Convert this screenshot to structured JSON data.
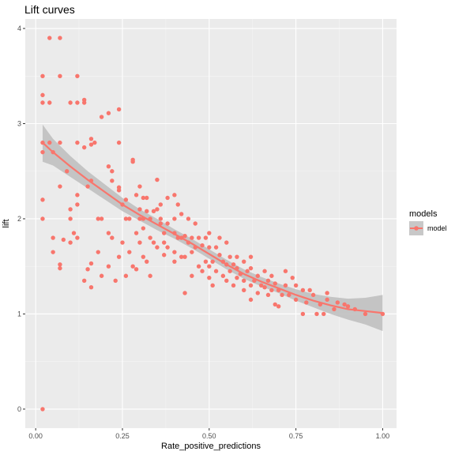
{
  "chart_data": {
    "type": "scatter",
    "title": "Lift curves",
    "xlabel": "Rate_positive_predictions",
    "ylabel": "lift",
    "xlim": [
      -0.03,
      1.04
    ],
    "ylim": [
      -0.2,
      4.1
    ],
    "x_ticks": [
      0.0,
      0.25,
      0.5,
      0.75,
      1.0
    ],
    "x_tick_labels": [
      "0.00",
      "0.25",
      "0.50",
      "0.75",
      "1.00"
    ],
    "y_ticks": [
      0,
      1,
      2,
      3,
      4
    ],
    "y_tick_labels": [
      "0",
      "1",
      "2",
      "3",
      "4"
    ],
    "grid": true,
    "legend": {
      "title": "models",
      "placement": "right",
      "entries": [
        "model"
      ]
    },
    "colors": {
      "points": "#f8766d",
      "smooth": "#f8766d",
      "ribbon": "#bdbdbd",
      "panel": "#ebebeb",
      "grid": "#ffffff"
    },
    "series": [
      {
        "name": "model",
        "points": [
          [
            0.02,
            0.0
          ],
          [
            0.02,
            2.0
          ],
          [
            0.02,
            2.2
          ],
          [
            0.02,
            2.7
          ],
          [
            0.02,
            2.8
          ],
          [
            0.02,
            3.22
          ],
          [
            0.02,
            3.3
          ],
          [
            0.02,
            3.5
          ],
          [
            0.04,
            2.8
          ],
          [
            0.04,
            3.22
          ],
          [
            0.04,
            3.9
          ],
          [
            0.05,
            1.65
          ],
          [
            0.05,
            1.8
          ],
          [
            0.05,
            2.7
          ],
          [
            0.07,
            1.48
          ],
          [
            0.07,
            1.52
          ],
          [
            0.07,
            2.34
          ],
          [
            0.07,
            2.8
          ],
          [
            0.07,
            3.5
          ],
          [
            0.07,
            3.9
          ],
          [
            0.08,
            1.78
          ],
          [
            0.09,
            2.5
          ],
          [
            0.1,
            1.75
          ],
          [
            0.1,
            2.0
          ],
          [
            0.1,
            2.1
          ],
          [
            0.1,
            3.22
          ],
          [
            0.11,
            1.85
          ],
          [
            0.12,
            1.8
          ],
          [
            0.12,
            2.15
          ],
          [
            0.12,
            2.25
          ],
          [
            0.12,
            2.8
          ],
          [
            0.12,
            3.22
          ],
          [
            0.12,
            3.5
          ],
          [
            0.14,
            1.35
          ],
          [
            0.14,
            2.75
          ],
          [
            0.14,
            3.22
          ],
          [
            0.14,
            3.25
          ],
          [
            0.15,
            1.47
          ],
          [
            0.15,
            2.34
          ],
          [
            0.16,
            1.28
          ],
          [
            0.16,
            1.53
          ],
          [
            0.16,
            2.4
          ],
          [
            0.16,
            2.78
          ],
          [
            0.16,
            2.84
          ],
          [
            0.17,
            2.8
          ],
          [
            0.18,
            1.65
          ],
          [
            0.18,
            2.0
          ],
          [
            0.19,
            1.4
          ],
          [
            0.19,
            2.0
          ],
          [
            0.19,
            3.07
          ],
          [
            0.21,
            1.5
          ],
          [
            0.21,
            1.85
          ],
          [
            0.21,
            2.55
          ],
          [
            0.21,
            3.11
          ],
          [
            0.22,
            1.8
          ],
          [
            0.22,
            2.4
          ],
          [
            0.22,
            2.5
          ],
          [
            0.23,
            1.35
          ],
          [
            0.24,
            1.6
          ],
          [
            0.24,
            2.3
          ],
          [
            0.24,
            2.33
          ],
          [
            0.24,
            2.8
          ],
          [
            0.24,
            3.15
          ],
          [
            0.25,
            1.75
          ],
          [
            0.25,
            2.15
          ],
          [
            0.26,
            1.4
          ],
          [
            0.26,
            2.0
          ],
          [
            0.26,
            2.2
          ],
          [
            0.27,
            1.65
          ],
          [
            0.27,
            2.0
          ],
          [
            0.28,
            1.5
          ],
          [
            0.28,
            2.6
          ],
          [
            0.28,
            2.62
          ],
          [
            0.29,
            1.47
          ],
          [
            0.29,
            1.85
          ],
          [
            0.29,
            2.25
          ],
          [
            0.3,
            1.75
          ],
          [
            0.3,
            2.0
          ],
          [
            0.3,
            2.1
          ],
          [
            0.3,
            2.34
          ],
          [
            0.31,
            1.6
          ],
          [
            0.31,
            1.9
          ],
          [
            0.31,
            2.0
          ],
          [
            0.31,
            2.22
          ],
          [
            0.32,
            1.55
          ],
          [
            0.32,
            2.22
          ],
          [
            0.32,
            2.08
          ],
          [
            0.33,
            1.4
          ],
          [
            0.33,
            1.8
          ],
          [
            0.33,
            2.0
          ],
          [
            0.34,
            1.75
          ],
          [
            0.34,
            2.08
          ],
          [
            0.35,
            1.7
          ],
          [
            0.35,
            2.1
          ],
          [
            0.35,
            2.41
          ],
          [
            0.36,
            1.95
          ],
          [
            0.36,
            2.15
          ],
          [
            0.36,
            2.0
          ],
          [
            0.37,
            1.62
          ],
          [
            0.37,
            1.75
          ],
          [
            0.37,
            1.85
          ],
          [
            0.38,
            1.7
          ],
          [
            0.38,
            1.95
          ],
          [
            0.38,
            2.22
          ],
          [
            0.4,
            1.55
          ],
          [
            0.4,
            1.65
          ],
          [
            0.4,
            1.85
          ],
          [
            0.4,
            2.0
          ],
          [
            0.4,
            2.25
          ],
          [
            0.41,
            1.8
          ],
          [
            0.41,
            2.15
          ],
          [
            0.42,
            1.6
          ],
          [
            0.42,
            1.8
          ],
          [
            0.42,
            2.05
          ],
          [
            0.43,
            1.22
          ],
          [
            0.43,
            1.6
          ],
          [
            0.43,
            1.82
          ],
          [
            0.44,
            1.75
          ],
          [
            0.44,
            2.0
          ],
          [
            0.45,
            1.4
          ],
          [
            0.45,
            1.65
          ],
          [
            0.45,
            1.8
          ],
          [
            0.46,
            1.7
          ],
          [
            0.46,
            1.95
          ],
          [
            0.47,
            1.5
          ],
          [
            0.47,
            1.8
          ],
          [
            0.48,
            1.45
          ],
          [
            0.48,
            1.72
          ],
          [
            0.49,
            1.55
          ],
          [
            0.49,
            1.8
          ],
          [
            0.5,
            1.38
          ],
          [
            0.5,
            1.5
          ],
          [
            0.5,
            1.7
          ],
          [
            0.5,
            1.85
          ],
          [
            0.51,
            1.3
          ],
          [
            0.51,
            1.55
          ],
          [
            0.52,
            1.45
          ],
          [
            0.52,
            1.7
          ],
          [
            0.53,
            1.62
          ],
          [
            0.53,
            1.8
          ],
          [
            0.54,
            1.4
          ],
          [
            0.54,
            1.55
          ],
          [
            0.55,
            1.35
          ],
          [
            0.55,
            1.52
          ],
          [
            0.55,
            1.75
          ],
          [
            0.56,
            1.45
          ],
          [
            0.56,
            1.6
          ],
          [
            0.57,
            1.3
          ],
          [
            0.57,
            1.52
          ],
          [
            0.58,
            1.38
          ],
          [
            0.58,
            1.48
          ],
          [
            0.58,
            1.6
          ],
          [
            0.59,
            1.42
          ],
          [
            0.6,
            1.25
          ],
          [
            0.6,
            1.35
          ],
          [
            0.6,
            1.55
          ],
          [
            0.61,
            1.45
          ],
          [
            0.62,
            1.15
          ],
          [
            0.62,
            1.3
          ],
          [
            0.62,
            1.48
          ],
          [
            0.62,
            1.6
          ],
          [
            0.63,
            1.35
          ],
          [
            0.64,
            1.22
          ],
          [
            0.64,
            1.4
          ],
          [
            0.65,
            1.3
          ],
          [
            0.66,
            1.28
          ],
          [
            0.66,
            1.45
          ],
          [
            0.67,
            1.35
          ],
          [
            0.67,
            1.2
          ],
          [
            0.68,
            1.25
          ],
          [
            0.68,
            1.4
          ],
          [
            0.69,
            1.1
          ],
          [
            0.69,
            1.32
          ],
          [
            0.7,
            1.08
          ],
          [
            0.7,
            1.25
          ],
          [
            0.71,
            1.2
          ],
          [
            0.72,
            1.3
          ],
          [
            0.72,
            1.45
          ],
          [
            0.73,
            1.2
          ],
          [
            0.74,
            1.38
          ],
          [
            0.75,
            1.15
          ],
          [
            0.75,
            1.3
          ],
          [
            0.77,
            1.0
          ],
          [
            0.77,
            1.25
          ],
          [
            0.78,
            1.12
          ],
          [
            0.79,
            1.25
          ],
          [
            0.8,
            1.2
          ],
          [
            0.81,
            1.0
          ],
          [
            0.82,
            1.1
          ],
          [
            0.83,
            1.0
          ],
          [
            0.84,
            1.15
          ],
          [
            0.84,
            1.22
          ],
          [
            0.86,
            1.05
          ],
          [
            0.87,
            1.12
          ],
          [
            0.89,
            1.1
          ],
          [
            0.9,
            1.08
          ],
          [
            0.92,
            1.05
          ],
          [
            0.95,
            1.0
          ],
          [
            1.0,
            1.0
          ]
        ],
        "smooth": [
          [
            0.02,
            2.8
          ],
          [
            0.05,
            2.7
          ],
          [
            0.1,
            2.55
          ],
          [
            0.15,
            2.41
          ],
          [
            0.2,
            2.28
          ],
          [
            0.25,
            2.15
          ],
          [
            0.3,
            2.04
          ],
          [
            0.35,
            1.94
          ],
          [
            0.4,
            1.84
          ],
          [
            0.45,
            1.74
          ],
          [
            0.5,
            1.63
          ],
          [
            0.55,
            1.52
          ],
          [
            0.6,
            1.42
          ],
          [
            0.65,
            1.34
          ],
          [
            0.7,
            1.27
          ],
          [
            0.75,
            1.2
          ],
          [
            0.8,
            1.14
          ],
          [
            0.85,
            1.09
          ],
          [
            0.9,
            1.05
          ],
          [
            0.95,
            1.03
          ],
          [
            1.0,
            1.01
          ]
        ],
        "ribbon_upper": [
          [
            0.02,
            2.99
          ],
          [
            0.05,
            2.84
          ],
          [
            0.1,
            2.66
          ],
          [
            0.15,
            2.5
          ],
          [
            0.2,
            2.36
          ],
          [
            0.25,
            2.22
          ],
          [
            0.3,
            2.1
          ],
          [
            0.35,
            2.0
          ],
          [
            0.4,
            1.89
          ],
          [
            0.45,
            1.79
          ],
          [
            0.5,
            1.68
          ],
          [
            0.55,
            1.57
          ],
          [
            0.6,
            1.47
          ],
          [
            0.65,
            1.39
          ],
          [
            0.7,
            1.32
          ],
          [
            0.75,
            1.26
          ],
          [
            0.8,
            1.21
          ],
          [
            0.85,
            1.18
          ],
          [
            0.9,
            1.16
          ],
          [
            0.95,
            1.17
          ],
          [
            1.0,
            1.2
          ]
        ],
        "ribbon_lower": [
          [
            0.02,
            2.6
          ],
          [
            0.05,
            2.56
          ],
          [
            0.1,
            2.44
          ],
          [
            0.15,
            2.32
          ],
          [
            0.2,
            2.2
          ],
          [
            0.25,
            2.08
          ],
          [
            0.3,
            1.98
          ],
          [
            0.35,
            1.88
          ],
          [
            0.4,
            1.79
          ],
          [
            0.45,
            1.69
          ],
          [
            0.5,
            1.58
          ],
          [
            0.55,
            1.47
          ],
          [
            0.6,
            1.37
          ],
          [
            0.65,
            1.29
          ],
          [
            0.7,
            1.22
          ],
          [
            0.75,
            1.14
          ],
          [
            0.8,
            1.07
          ],
          [
            0.85,
            1.0
          ],
          [
            0.9,
            0.94
          ],
          [
            0.95,
            0.89
          ],
          [
            1.0,
            0.82
          ]
        ]
      }
    ]
  }
}
